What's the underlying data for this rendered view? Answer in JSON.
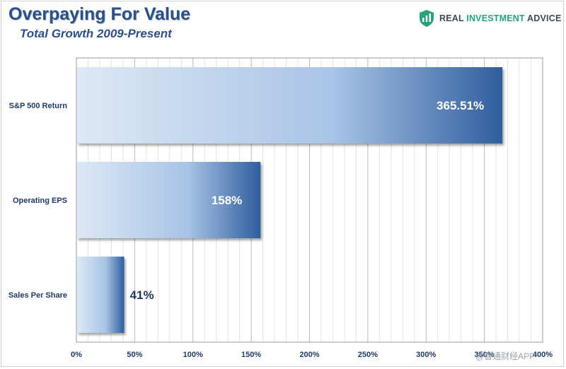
{
  "header": {
    "title": "Overpaying For Value",
    "subtitle": "Total Growth 2009-Present"
  },
  "brand": {
    "name_part1": "REAL ",
    "name_part2": "INVESTMENT",
    "name_part3": " ADVICE",
    "icon": "shield-chart-icon",
    "color_dark": "#3d4a55",
    "color_green": "#27a37c"
  },
  "watermark": "@智通财经APP",
  "colors": {
    "bar_light": "#dce8f5",
    "bar_mid": "#a9c4e6",
    "bar_dark": "#2f5e9e",
    "label_on_bar": "#ffffff",
    "label_off_bar": "#1f3a66"
  },
  "chart_data": {
    "type": "bar",
    "orientation": "horizontal",
    "categories": [
      "S&P 500 Return",
      "Operating EPS",
      "Sales Per Share"
    ],
    "values": [
      365.51,
      158,
      41
    ],
    "value_labels": [
      "365.51%",
      "158%",
      "41%"
    ],
    "title": "Overpaying For Value",
    "subtitle": "Total Growth 2009-Present",
    "xlabel": "",
    "ylabel": "",
    "xlim": [
      0,
      400
    ],
    "xticks": [
      0,
      50,
      100,
      150,
      200,
      250,
      300,
      350,
      400
    ],
    "xtick_labels": [
      "0%",
      "50%",
      "100%",
      "150%",
      "200%",
      "250%",
      "300%",
      "350%",
      "400%"
    ],
    "grid": true,
    "legend": "none"
  }
}
